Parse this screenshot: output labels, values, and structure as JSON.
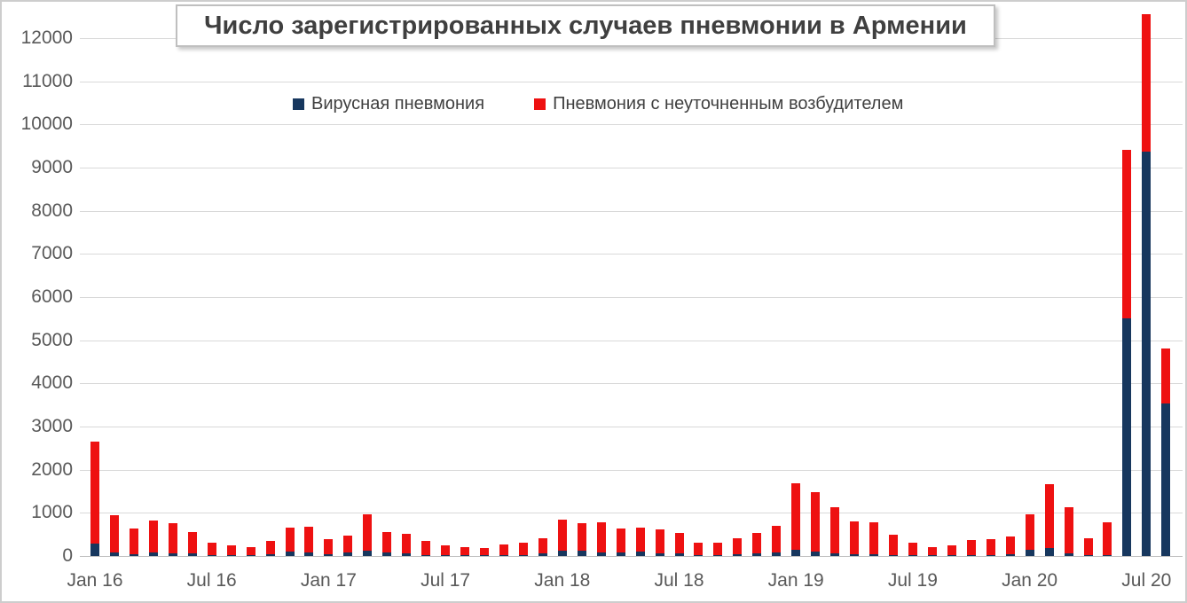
{
  "title": "Число зарегистрированных случаев пневмонии в Армении",
  "colors": {
    "viral": "#17375E",
    "unspecified": "#EE1111",
    "grid": "#D9D9D9",
    "axis": "#BFBFBF",
    "tick_text": "#595959",
    "title_text": "#3F3F3F"
  },
  "chart_data": {
    "type": "bar",
    "stacked": true,
    "title": "Число зарегистрированных случаев пневмонии в Армении",
    "xlabel": "",
    "ylabel": "",
    "grid": "horizontal",
    "legend_position": "top-center",
    "ylim": [
      0,
      12800
    ],
    "y_ticks": [
      0,
      1000,
      2000,
      3000,
      4000,
      5000,
      6000,
      7000,
      8000,
      9000,
      10000,
      11000,
      12000
    ],
    "x_ticks": [
      {
        "index": 0,
        "label": "Jan 16"
      },
      {
        "index": 6,
        "label": "Jul 16"
      },
      {
        "index": 12,
        "label": "Jan 17"
      },
      {
        "index": 18,
        "label": "Jul 17"
      },
      {
        "index": 24,
        "label": "Jan 18"
      },
      {
        "index": 30,
        "label": "Jul 18"
      },
      {
        "index": 36,
        "label": "Jan 19"
      },
      {
        "index": 42,
        "label": "Jul 19"
      },
      {
        "index": 48,
        "label": "Jan 20"
      },
      {
        "index": 54,
        "label": "Jul 20"
      }
    ],
    "categories": [
      "Jan 16",
      "Feb 16",
      "Mar 16",
      "Apr 16",
      "May 16",
      "Jun 16",
      "Jul 16",
      "Aug 16",
      "Sep 16",
      "Oct 16",
      "Nov 16",
      "Dec 16",
      "Jan 17",
      "Feb 17",
      "Mar 17",
      "Apr 17",
      "May 17",
      "Jun 17",
      "Jul 17",
      "Aug 17",
      "Sep 17",
      "Oct 17",
      "Nov 17",
      "Dec 17",
      "Jan 18",
      "Feb 18",
      "Mar 18",
      "Apr 18",
      "May 18",
      "Jun 18",
      "Jul 18",
      "Aug 18",
      "Sep 18",
      "Oct 18",
      "Nov 18",
      "Dec 18",
      "Jan 19",
      "Feb 19",
      "Mar 19",
      "Apr 19",
      "May 19",
      "Jun 19",
      "Jul 19",
      "Aug 19",
      "Sep 19",
      "Oct 19",
      "Nov 19",
      "Dec 19",
      "Jan 20",
      "Feb 20",
      "Mar 20",
      "Apr 20",
      "May 20",
      "Jun 20",
      "Jul 20",
      "Aug 20"
    ],
    "series": [
      {
        "name": "Вирусная пневмония",
        "color": "#17375E",
        "values": [
          290,
          90,
          50,
          80,
          70,
          55,
          25,
          20,
          15,
          35,
          100,
          85,
          40,
          85,
          115,
          85,
          70,
          30,
          20,
          15,
          15,
          25,
          30,
          70,
          130,
          115,
          80,
          80,
          100,
          70,
          70,
          25,
          30,
          40,
          60,
          80,
          150,
          100,
          65,
          40,
          40,
          30,
          25,
          15,
          20,
          25,
          30,
          35,
          140,
          190,
          70,
          20,
          30,
          5500,
          9360,
          3530
        ]
      },
      {
        "name": "Пневмония с неуточненным возбудителем",
        "color": "#EE1111",
        "values": [
          2360,
          860,
          600,
          740,
          700,
          485,
          285,
          220,
          195,
          315,
          550,
          595,
          350,
          395,
          835,
          475,
          450,
          325,
          235,
          185,
          160,
          250,
          290,
          355,
          720,
          645,
          690,
          550,
          560,
          560,
          465,
          285,
          290,
          360,
          475,
          620,
          1540,
          1370,
          1065,
          750,
          740,
          480,
          285,
          185,
          220,
          350,
          360,
          410,
          820,
          1480,
          1060,
          390,
          770,
          3900,
          3175,
          1280
        ]
      }
    ]
  }
}
